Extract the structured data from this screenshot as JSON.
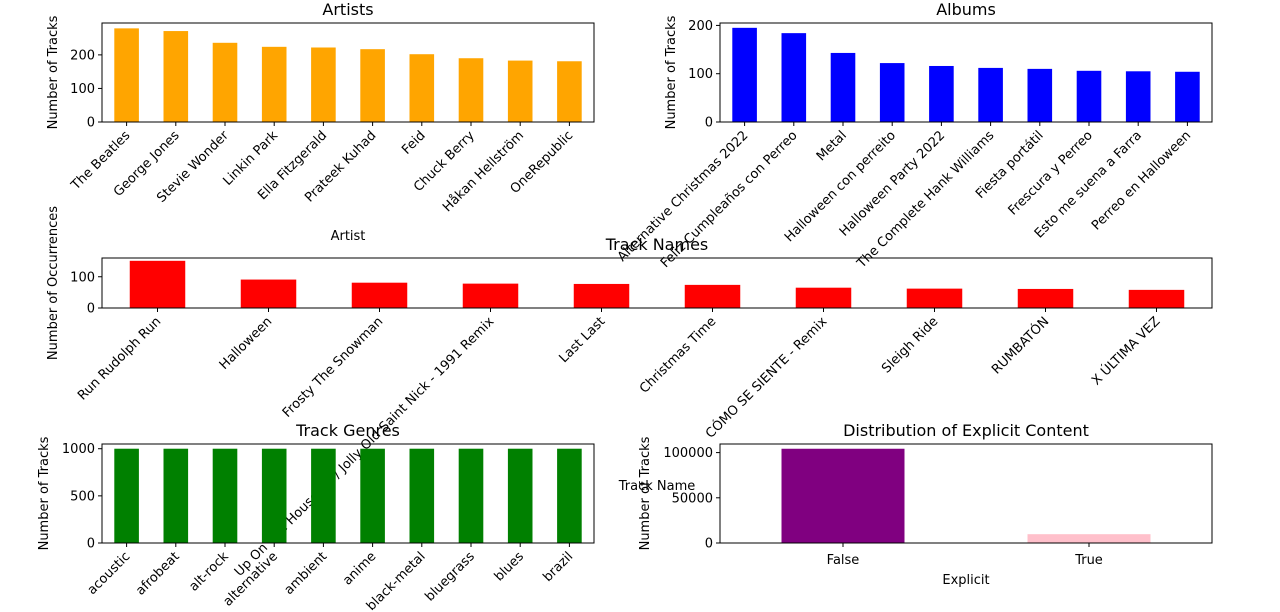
{
  "chart_data": [
    {
      "type": "bar",
      "title": "Artists",
      "xlabel": "Artist",
      "ylabel": "Number of Tracks",
      "categories": [
        "The Beatles",
        "George Jones",
        "Stevie Wonder",
        "Linkin Park",
        "Ella Fitzgerald",
        "Prateek Kuhad",
        "Feid",
        "Chuck Berry",
        "Håkan Hellström",
        "OneRepublic"
      ],
      "values": [
        279,
        271,
        236,
        224,
        222,
        217,
        202,
        190,
        183,
        181
      ],
      "ylim": [
        0,
        295
      ],
      "yticks": [
        0,
        100,
        200
      ],
      "color": "#ffa500"
    },
    {
      "type": "bar",
      "title": "Albums",
      "xlabel": "",
      "ylabel": "Number of Tracks",
      "categories": [
        "Alternative Christmas 2022",
        "Feliz Cumpleaños con Perreo",
        "Metal",
        "Halloween con perreito",
        "Halloween Party 2022",
        "The Complete Hank Williams",
        "Fiesta portátil",
        "Frescura y Perreo",
        "Esto me suena a Farra",
        "Perreo en Halloween"
      ],
      "values": [
        195,
        184,
        143,
        122,
        116,
        112,
        110,
        106,
        105,
        104
      ],
      "ylim": [
        0,
        205
      ],
      "yticks": [
        0,
        100,
        200
      ],
      "color": "#0000ff"
    },
    {
      "type": "bar",
      "title": "Track Names",
      "xlabel": "Track Name",
      "ylabel": "Number of Occurrences",
      "categories": [
        "Run Rudolph Run",
        "Halloween",
        "Frosty The Snowman",
        "Up On The Housetop / Jolly Old Saint Nick - 1991 Remix",
        "Last Last",
        "Christmas Time",
        "CÓMO SE SIENTE - Remix",
        "Sleigh Ride",
        "RUMBATÓN",
        "X ÚLTIMA VEZ"
      ],
      "values": [
        151,
        91,
        81,
        78,
        77,
        74,
        65,
        62,
        61,
        58
      ],
      "ylim": [
        0,
        160
      ],
      "yticks": [
        0,
        100
      ],
      "color": "#ff0000"
    },
    {
      "type": "bar",
      "title": "Track Genres",
      "xlabel": "",
      "ylabel": "Number of Tracks",
      "categories": [
        "acoustic",
        "afrobeat",
        "alt-rock",
        "alternative",
        "ambient",
        "anime",
        "black-metal",
        "bluegrass",
        "blues",
        "brazil"
      ],
      "values": [
        1000,
        1000,
        1000,
        1000,
        1000,
        1000,
        1000,
        1000,
        1000,
        1000
      ],
      "ylim": [
        0,
        1050
      ],
      "yticks": [
        0,
        500,
        1000
      ],
      "color": "#008000"
    },
    {
      "type": "bar",
      "title": "Distribution of Explicit Content",
      "xlabel": "Explicit",
      "ylabel": "Number of Tracks",
      "categories": [
        "False",
        "True"
      ],
      "values": [
        104253,
        9747
      ],
      "ylim": [
        0,
        109500
      ],
      "yticks": [
        0,
        50000,
        100000
      ],
      "colors": [
        "#800080",
        "#ffc0cb"
      ]
    }
  ]
}
